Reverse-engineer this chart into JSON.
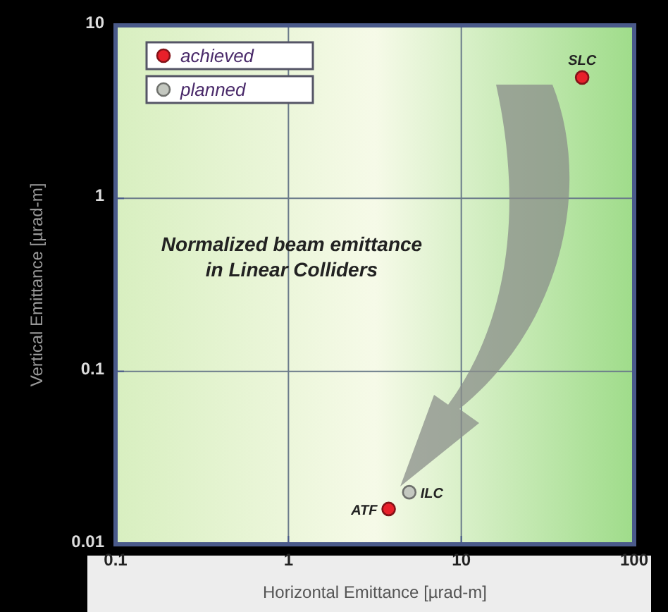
{
  "chart_data": {
    "type": "scatter",
    "title": "Normalized beam emittance in Linear Colliders",
    "xlabel": "Horizontal Emittance  [µrad-m]",
    "ylabel": "Vertical Emittance  [µrad-m]",
    "log": "xy",
    "xlim": [
      0.1,
      100
    ],
    "ylim": [
      0.01,
      10
    ],
    "xticks": [
      0.1,
      1,
      10,
      100
    ],
    "yticks": [
      0.01,
      0.1,
      1,
      10
    ],
    "grid": true,
    "legend": "top left",
    "marker": "circle",
    "series": [
      {
        "name": "achieved",
        "color": "#e8202a",
        "x": [
          50,
          3.8
        ],
        "values": [
          5,
          0.016
        ]
      },
      {
        "name": "planned",
        "color": "#c4c8c0",
        "x": [
          5
        ],
        "values": [
          0.02
        ]
      }
    ],
    "annotations": [
      {
        "text": "SLC",
        "x": 50,
        "y": 5
      },
      {
        "text": "ATF",
        "x": 3.8,
        "y": 0.016
      },
      {
        "text": "ILC",
        "x": 5,
        "y": 0.02
      }
    ]
  }
}
